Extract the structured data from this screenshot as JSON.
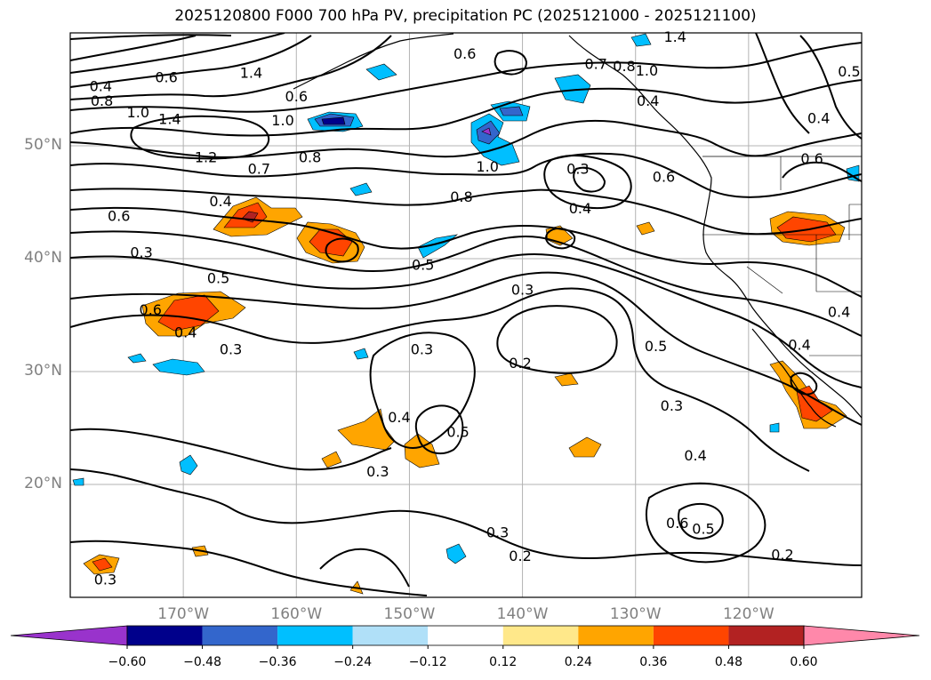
{
  "title": "2025120800 F000 700 hPa PV, precipitation PC (2025121000 - 2025121100)",
  "map": {
    "lon_range": [
      -180,
      -110
    ],
    "lat_range": [
      10,
      60
    ],
    "lat_ticks": [
      {
        "value": 50,
        "label": "50°N"
      },
      {
        "value": 40,
        "label": "40°N"
      },
      {
        "value": 30,
        "label": "30°N"
      },
      {
        "value": 20,
        "label": "20°N"
      }
    ],
    "lon_ticks": [
      {
        "value": -170,
        "label": "170°W"
      },
      {
        "value": -160,
        "label": "160°W"
      },
      {
        "value": -150,
        "label": "150°W"
      },
      {
        "value": -140,
        "label": "140°W"
      },
      {
        "value": -130,
        "label": "130°W"
      },
      {
        "value": -120,
        "label": "120°W"
      }
    ],
    "grid_color": "#b3b3b3",
    "contour_color": "#000000"
  },
  "colorbar": {
    "levels": [
      "−0.60",
      "−0.48",
      "−0.36",
      "−0.24",
      "−0.12",
      "0.12",
      "0.24",
      "0.36",
      "0.48",
      "0.60"
    ],
    "colors": [
      "#9933cc",
      "#00008b",
      "#3366cc",
      "#00bfff",
      "#b0e0f8",
      "#ffffff",
      "#ffe88a",
      "#ffa500",
      "#ff4500",
      "#b22222",
      "#ff88aa"
    ]
  },
  "contour_labels": [
    {
      "text": "0.4",
      "lon": -177.3,
      "lat": 55.3
    },
    {
      "text": "0.8",
      "lon": -177.2,
      "lat": 54.0
    },
    {
      "text": "1.0",
      "lon": -174.0,
      "lat": 53.0
    },
    {
      "text": "1.4",
      "lon": -171.2,
      "lat": 52.4
    },
    {
      "text": "0.6",
      "lon": -171.5,
      "lat": 56.1
    },
    {
      "text": "1.4",
      "lon": -164.0,
      "lat": 56.5
    },
    {
      "text": "1.2",
      "lon": -168.0,
      "lat": 49.0
    },
    {
      "text": "0.7",
      "lon": -163.3,
      "lat": 48.0
    },
    {
      "text": "0.8",
      "lon": -158.8,
      "lat": 49.0
    },
    {
      "text": "0.6",
      "lon": -160.0,
      "lat": 54.4
    },
    {
      "text": "1.0",
      "lon": -161.2,
      "lat": 52.3
    },
    {
      "text": "0.6",
      "lon": -175.7,
      "lat": 43.8
    },
    {
      "text": "0.4",
      "lon": -166.7,
      "lat": 45.1
    },
    {
      "text": "0.3",
      "lon": -173.7,
      "lat": 40.6
    },
    {
      "text": "0.5",
      "lon": -166.9,
      "lat": 38.3
    },
    {
      "text": "0.6",
      "lon": -172.9,
      "lat": 35.5
    },
    {
      "text": "0.4",
      "lon": -169.8,
      "lat": 33.5
    },
    {
      "text": "0.3",
      "lon": -165.8,
      "lat": 32.0
    },
    {
      "text": "0.6",
      "lon": -145.1,
      "lat": 58.2
    },
    {
      "text": "0.7",
      "lon": -133.5,
      "lat": 57.3
    },
    {
      "text": "0.8",
      "lon": -131.0,
      "lat": 57.1
    },
    {
      "text": "1.0",
      "lon": -129.0,
      "lat": 56.7
    },
    {
      "text": "0.4",
      "lon": -128.9,
      "lat": 54.0
    },
    {
      "text": "1.4",
      "lon": -126.5,
      "lat": 59.7
    },
    {
      "text": "1.0",
      "lon": -143.1,
      "lat": 48.2
    },
    {
      "text": "0.8",
      "lon": -145.4,
      "lat": 45.5
    },
    {
      "text": "0.3",
      "lon": -135.1,
      "lat": 48.0
    },
    {
      "text": "0.4",
      "lon": -134.9,
      "lat": 44.5
    },
    {
      "text": "0.6",
      "lon": -127.5,
      "lat": 47.3
    },
    {
      "text": "0.5",
      "lon": -148.8,
      "lat": 39.5
    },
    {
      "text": "0.3",
      "lon": -140.0,
      "lat": 37.3
    },
    {
      "text": "0.2",
      "lon": -140.2,
      "lat": 30.8
    },
    {
      "text": "0.5",
      "lon": -128.2,
      "lat": 32.3
    },
    {
      "text": "0.3",
      "lon": -148.9,
      "lat": 32.0
    },
    {
      "text": "0.4",
      "lon": -150.9,
      "lat": 26.0
    },
    {
      "text": "0.5",
      "lon": -145.7,
      "lat": 24.7
    },
    {
      "text": "0.3",
      "lon": -152.8,
      "lat": 21.2
    },
    {
      "text": "0.3",
      "lon": -126.8,
      "lat": 27.0
    },
    {
      "text": "0.4",
      "lon": -124.7,
      "lat": 22.6
    },
    {
      "text": "0.6",
      "lon": -126.3,
      "lat": 16.6
    },
    {
      "text": "0.5",
      "lon": -124.0,
      "lat": 16.1
    },
    {
      "text": "0.3",
      "lon": -142.2,
      "lat": 15.8
    },
    {
      "text": "0.2",
      "lon": -140.2,
      "lat": 13.7
    },
    {
      "text": "0.2",
      "lon": -117.0,
      "lat": 13.8
    },
    {
      "text": "0.3",
      "lon": -176.9,
      "lat": 11.6
    },
    {
      "text": "0.6",
      "lon": -114.4,
      "lat": 48.9
    },
    {
      "text": "0.4",
      "lon": -113.8,
      "lat": 52.5
    },
    {
      "text": "0.5",
      "lon": -111.1,
      "lat": 56.6
    },
    {
      "text": "0.4",
      "lon": -112.0,
      "lat": 35.3
    },
    {
      "text": "0.4",
      "lon": -115.5,
      "lat": 32.4
    }
  ]
}
